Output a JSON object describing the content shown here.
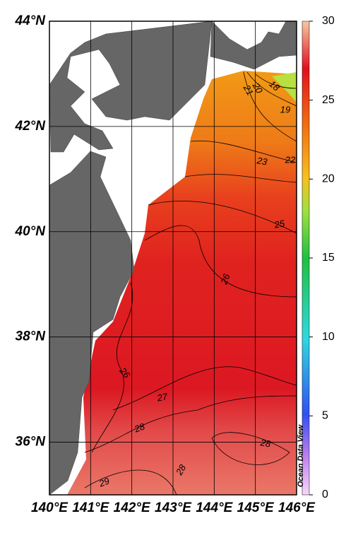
{
  "map": {
    "lonlim": [
      140,
      146
    ],
    "latlim": [
      35,
      44
    ],
    "lon_ticks": [
      {
        "value": 140,
        "label": "140°E"
      },
      {
        "value": 141,
        "label": "141°E"
      },
      {
        "value": 142,
        "label": "142°E"
      },
      {
        "value": 143,
        "label": "143°E"
      },
      {
        "value": 144,
        "label": "144°E"
      },
      {
        "value": 145,
        "label": "145°E"
      },
      {
        "value": 146,
        "label": "146°E"
      }
    ],
    "lat_ticks": [
      {
        "value": 36,
        "label": "36°N"
      },
      {
        "value": 38,
        "label": "38°N"
      },
      {
        "value": 40,
        "label": "40°N"
      },
      {
        "value": 42,
        "label": "42°N"
      },
      {
        "value": 44,
        "label": "44°N"
      }
    ],
    "colorbar": {
      "lim": [
        0,
        30
      ],
      "ticks": [
        0,
        5,
        10,
        15,
        20,
        25,
        30
      ]
    },
    "contour_labels": [
      18,
      20,
      21,
      19,
      22,
      23,
      25,
      26,
      26,
      27,
      28,
      28,
      28,
      29
    ],
    "watermark": "Ocean Data View"
  }
}
